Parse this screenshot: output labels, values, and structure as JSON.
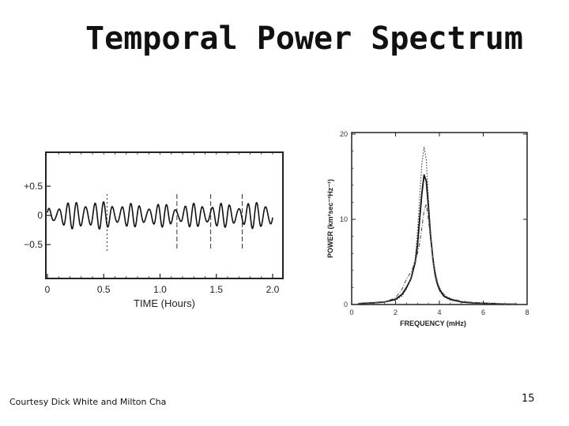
{
  "slide": {
    "title": "Temporal Power Spectrum",
    "footer": "Courtesy Dick White and Milton Cha",
    "page_number": "15"
  },
  "chart_data": [
    {
      "type": "line",
      "xlabel": "TIME (Hours)",
      "ylabel": "",
      "xlim": [
        0,
        2.05
      ],
      "ylim": [
        -0.9,
        0.9
      ],
      "x_ticks": [
        0,
        0.5,
        1.0,
        1.5,
        2.0
      ],
      "x_tick_labels": [
        "0",
        "0.5",
        "1.0",
        "1.5",
        "2.0"
      ],
      "y_ticks": [
        0.5,
        0,
        -0.5
      ],
      "y_tick_labels": [
        "+0.5",
        "0",
        "−0.5"
      ],
      "vertical_markers": [
        0.53,
        1.15,
        1.45,
        1.73
      ],
      "grid": false,
      "series": [
        {
          "signal": "oscillation near 3.3 mHz with beating envelope",
          "period_minutes": 5,
          "amplitude_range": [
            -0.25,
            0.25
          ]
        }
      ]
    },
    {
      "type": "line",
      "xlabel": "FREQUENCY (mHz)",
      "ylabel": "POWER (km²sec⁻²Hz⁻¹)",
      "xlim": [
        0,
        8
      ],
      "ylim": [
        0,
        20
      ],
      "x_ticks": [
        0,
        2,
        4,
        6,
        8
      ],
      "x_tick_labels": [
        "0",
        "2",
        "4",
        "6",
        "8"
      ],
      "y_ticks": [
        0,
        10,
        20
      ],
      "y_tick_labels": [
        "0",
        "10",
        "20"
      ],
      "grid": false,
      "series": [
        {
          "style": "solid",
          "x": [
            0.3,
            1.0,
            1.5,
            2.0,
            2.3,
            2.5,
            2.7,
            2.9,
            3.0,
            3.1,
            3.2,
            3.3,
            3.4,
            3.5,
            3.6,
            3.7,
            3.8,
            3.9,
            4.0,
            4.2,
            4.5,
            5.0,
            5.5,
            6.0,
            6.5,
            7.0,
            7.5
          ],
          "y": [
            0.1,
            0.2,
            0.3,
            0.6,
            1.2,
            2.0,
            3.0,
            5.0,
            7.0,
            10.0,
            13.0,
            15.2,
            14.5,
            11.5,
            8.0,
            5.5,
            3.6,
            2.5,
            1.8,
            1.0,
            0.6,
            0.3,
            0.2,
            0.15,
            0.1,
            0.05,
            0.05
          ]
        },
        {
          "style": "dotted",
          "x": [
            0.3,
            1.0,
            1.5,
            2.0,
            2.3,
            2.5,
            2.7,
            2.9,
            3.0,
            3.1,
            3.2,
            3.3,
            3.4,
            3.5,
            3.6,
            3.7,
            3.8,
            3.9,
            4.0,
            4.2,
            4.5,
            5.0,
            5.5,
            6.0,
            6.5,
            7.0,
            7.5
          ],
          "y": [
            0.1,
            0.2,
            0.3,
            0.5,
            1.0,
            1.8,
            3.0,
            5.5,
            8.5,
            12.5,
            16.5,
            18.5,
            17.0,
            12.5,
            8.0,
            5.0,
            3.3,
            2.3,
            1.6,
            0.9,
            0.5,
            0.3,
            0.2,
            0.12,
            0.1,
            0.05,
            0.05
          ]
        },
        {
          "style": "dashed",
          "x": [
            0.3,
            1.0,
            1.5,
            2.0,
            2.3,
            2.5,
            2.7,
            2.9,
            3.0,
            3.1,
            3.2,
            3.3,
            3.4,
            3.5,
            3.6,
            3.7,
            3.8,
            3.9,
            4.0,
            4.2,
            4.5,
            5.0,
            5.5,
            6.0,
            6.5,
            7.0,
            7.5
          ],
          "y": [
            0.1,
            0.2,
            0.3,
            0.8,
            1.8,
            3.0,
            3.8,
            5.0,
            6.0,
            7.2,
            9.0,
            11.0,
            11.8,
            10.0,
            7.5,
            5.5,
            4.0,
            2.8,
            2.0,
            1.2,
            0.7,
            0.4,
            0.25,
            0.15,
            0.1,
            0.05,
            0.05
          ]
        }
      ]
    }
  ]
}
